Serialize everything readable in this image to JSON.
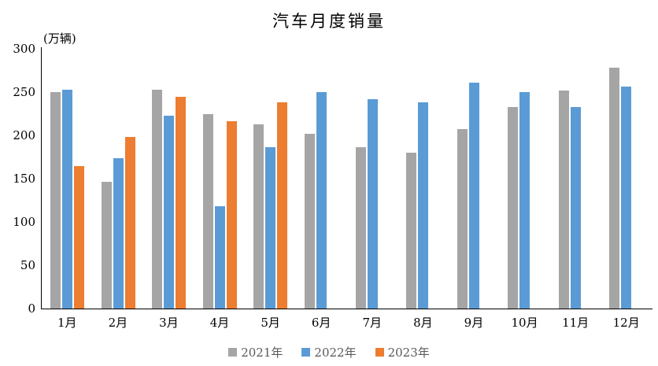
{
  "title": "汽车月度销量",
  "unit_label": "(万辆)",
  "chart_data": {
    "type": "bar",
    "title": "汽车月度销量",
    "ylabel": "(万辆)",
    "xlabel": "",
    "categories": [
      "1月",
      "2月",
      "3月",
      "4月",
      "5月",
      "6月",
      "7月",
      "8月",
      "9月",
      "10月",
      "11月",
      "12月"
    ],
    "series": [
      {
        "name": "2021年",
        "color": "#A5A5A5",
        "values": [
          250,
          146,
          253,
          225,
          213,
          202,
          186,
          180,
          207,
          233,
          252,
          278
        ]
      },
      {
        "name": "2022年",
        "color": "#5B9BD5",
        "values": [
          253,
          174,
          223,
          118,
          186,
          250,
          242,
          238,
          261,
          250,
          233,
          256
        ]
      },
      {
        "name": "2023年",
        "color": "#ED7D31",
        "values": [
          165,
          198,
          245,
          216,
          238,
          null,
          null,
          null,
          null,
          null,
          null,
          null
        ]
      }
    ],
    "ylim": [
      0,
      300
    ],
    "yticks": [
      0,
      50,
      100,
      150,
      200,
      250,
      300
    ],
    "grid": false,
    "legend_position": "bottom",
    "axis_color": "#000000",
    "legend_text_color": "#595959"
  }
}
